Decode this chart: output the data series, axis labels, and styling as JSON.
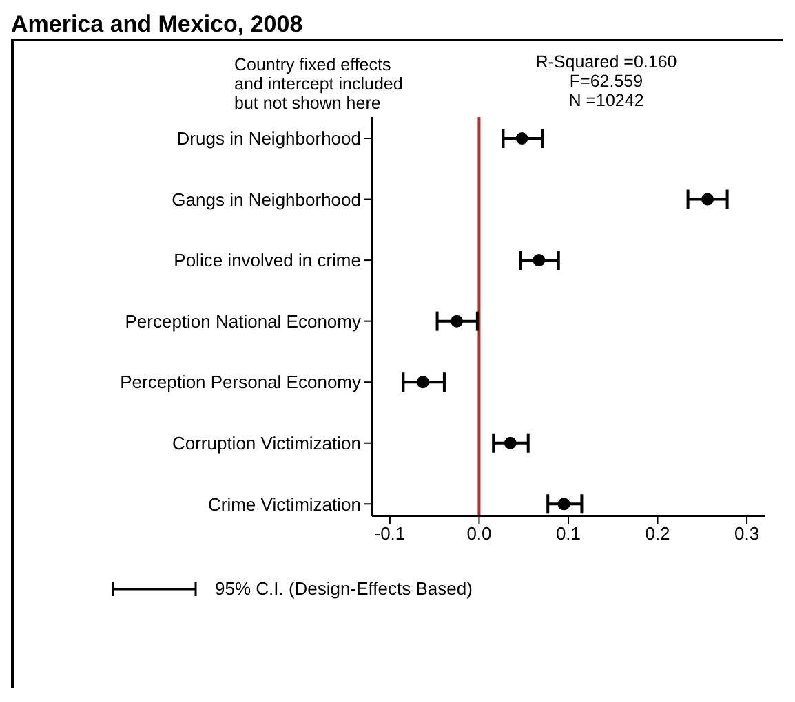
{
  "chart_data": {
    "type": "scatter",
    "title": "America and Mexico, 2008",
    "categories": [
      "Drugs in Neighborhood",
      "Gangs in Neighborhood",
      "Police involved in crime",
      "Perception National Economy",
      "Perception Personal Economy",
      "Corruption Victimization",
      "Crime Victimization"
    ],
    "series": [
      {
        "name": "95% C.I. (Design-Effects Based)",
        "color": "#000000",
        "values": [
          0.048,
          0.256,
          0.067,
          -0.025,
          -0.063,
          0.035,
          0.095
        ],
        "errors": [
          [
            0.027,
            0.071
          ],
          [
            0.234,
            0.278
          ],
          [
            0.046,
            0.089
          ],
          [
            -0.047,
            -0.002
          ],
          [
            -0.085,
            -0.039
          ],
          [
            0.016,
            0.055
          ],
          [
            0.077,
            0.115
          ]
        ]
      }
    ],
    "orientation": "horizontal",
    "xlim": [
      -0.12,
      0.32
    ],
    "xticks": [
      -0.1,
      {
        "value": 0,
        "label": "0.0"
      },
      0.1,
      0.2,
      0.3
    ],
    "ref_lines": [
      {
        "axis": "x",
        "value": 0,
        "color": "#a83232"
      }
    ],
    "marker": "circle",
    "grid": false,
    "legend": "bottom",
    "annotations": [
      "Country fixed effects\nand intercept included\nbut not shown here",
      "R-Squared =0.160\nF=62.559\nN =10242"
    ]
  }
}
